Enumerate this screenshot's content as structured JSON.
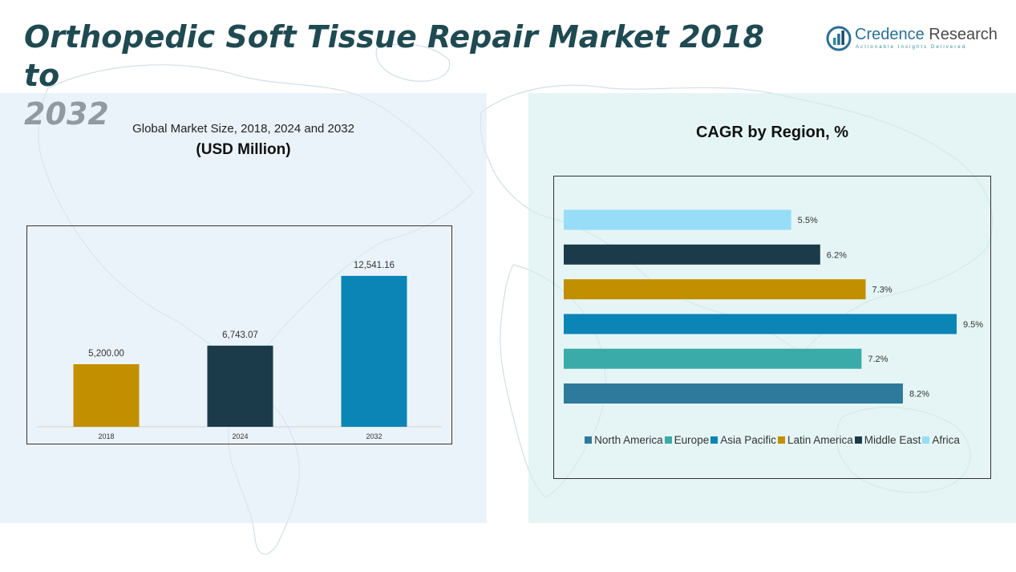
{
  "page": {
    "title_part1": "Orthopedic Soft Tissue Repair Market 2018 to",
    "title_part2": "2032"
  },
  "logo": {
    "name_part1": "Credence",
    "name_part2": " Research",
    "tagline": "Actionable Insights Delivered",
    "icon": "bar-chart-circle-icon",
    "colors": {
      "primary": "#2b6f94",
      "secondary": "#4a4a4a"
    }
  },
  "chart_data": [
    {
      "type": "bar",
      "title": "Global Market Size, 2018, 2024 and 2032",
      "subtitle": "(USD Million)",
      "categories": [
        "2018",
        "2024",
        "2032"
      ],
      "values": [
        5200.0,
        6743.07,
        12541.16
      ],
      "value_labels": [
        "5,200.00",
        "6,743.07",
        "12,541.16"
      ],
      "colors": [
        "#c18f00",
        "#1b3b4b",
        "#0a85b6"
      ],
      "ylim": [
        0,
        15000
      ],
      "grid": false,
      "legend": "none"
    },
    {
      "type": "bar",
      "orientation": "horizontal",
      "title": "CAGR by Region, %",
      "categories": [
        "North America",
        "Europe",
        "Asia Pacific",
        "Latin America",
        "Middle East",
        "Africa"
      ],
      "values": [
        8.2,
        7.2,
        9.5,
        7.3,
        6.2,
        5.5
      ],
      "value_labels": [
        "8.2%",
        "7.2%",
        "9.5%",
        "7.3%",
        "6.2%",
        "5.5%"
      ],
      "colors": [
        "#2e7a9c",
        "#3aaba8",
        "#0a85b6",
        "#c18f00",
        "#1b3b4b",
        "#97ddf7"
      ],
      "xlim": [
        0,
        9.5
      ],
      "grid": false,
      "legend": "bottom"
    }
  ]
}
